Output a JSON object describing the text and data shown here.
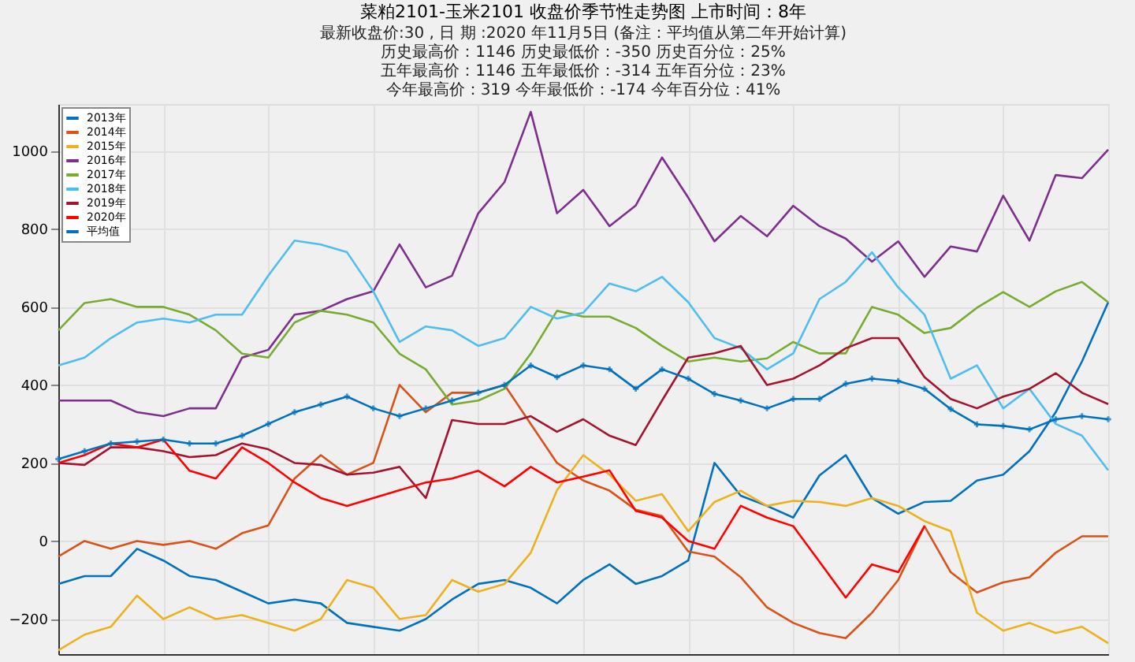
{
  "chart_data": {
    "type": "line",
    "title": "菜粕2101-玉米2101  收盘价季节性走势图      上市时间：8年",
    "subtitle": "最新收盘价:30 , 日 期 :2020 年11月5日  (备注：平均值从第二年开始计算)\n历史最高价：1146 历史最低价：-350 历史百分位：25%\n五年最高价：1146 五年最低价：-314 五年百分位：23%\n今年最高价：319 今年最低价：-174 今年百分位：41%",
    "categories": [
      null,
      null,
      null,
      null,
      null,
      null,
      null,
      null,
      null,
      null,
      null,
      null,
      null,
      null,
      null,
      null,
      null,
      null,
      null,
      null,
      null,
      null,
      null,
      null,
      null,
      null,
      null,
      null,
      null,
      null,
      null,
      null,
      null,
      null,
      null,
      null,
      null,
      null,
      null,
      null,
      null
    ],
    "series": [
      {
        "name": "2013年",
        "color": "#0072bd",
        "values": [
          -110,
          -90,
          -90,
          -20,
          -50,
          -90,
          -100,
          -130,
          -160,
          -150,
          -160,
          -210,
          -220,
          -230,
          -200,
          -150,
          -110,
          -100,
          -120,
          -160,
          -100,
          -60,
          -110,
          -90,
          -50,
          200,
          116,
          90,
          60,
          168,
          220,
          110,
          70,
          100,
          103,
          155,
          170,
          230,
          330,
          460,
          612
        ]
      },
      {
        "name": "2014年",
        "color": "#d95319",
        "values": [
          -40,
          0,
          -20,
          0,
          -10,
          0,
          -20,
          20,
          40,
          160,
          220,
          170,
          200,
          400,
          330,
          380,
          380,
          400,
          300,
          200,
          155,
          129,
          80,
          64,
          -27,
          -40,
          -93,
          -170,
          -210,
          -236,
          -249,
          -184,
          -100,
          38,
          -80,
          -132,
          -106,
          -93,
          -30,
          12,
          12
        ]
      },
      {
        "name": "2015年",
        "color": "#edb120",
        "values": [
          -280,
          -240,
          -220,
          -140,
          -200,
          -170,
          -200,
          -190,
          -210,
          -230,
          -200,
          -100,
          -120,
          -200,
          -190,
          -100,
          -130,
          -110,
          -30,
          130,
          220,
          170,
          103,
          120,
          25,
          100,
          129,
          90,
          103,
          100,
          90,
          110,
          90,
          51,
          25,
          -184,
          -230,
          -210,
          -236,
          -220,
          -262
        ]
      },
      {
        "name": "2016年",
        "color": "#7e2f8e",
        "values": [
          360,
          360,
          360,
          330,
          320,
          340,
          340,
          470,
          490,
          580,
          590,
          620,
          640,
          760,
          650,
          680,
          840,
          920,
          1100,
          840,
          900,
          807,
          860,
          983,
          880,
          768,
          833,
          781,
          859,
          807,
          775,
          716,
          768,
          677,
          755,
          742,
          885,
          770,
          938,
          930,
          1003
        ]
      },
      {
        "name": "2017年",
        "color": "#77ac30",
        "values": [
          540,
          610,
          620,
          600,
          600,
          580,
          540,
          480,
          470,
          560,
          590,
          580,
          560,
          480,
          440,
          350,
          360,
          390,
          480,
          590,
          575,
          575,
          546,
          500,
          460,
          470,
          460,
          468,
          510,
          481,
          481,
          600,
          580,
          533,
          546,
          598,
          638,
          600,
          640,
          664,
          612
        ]
      },
      {
        "name": "2018年",
        "color": "#4dbeee",
        "values": [
          450,
          470,
          520,
          560,
          570,
          560,
          580,
          580,
          680,
          770,
          760,
          740,
          640,
          510,
          550,
          540,
          500,
          520,
          600,
          570,
          585,
          660,
          640,
          677,
          612,
          520,
          494,
          440,
          481,
          620,
          664,
          740,
          650,
          580,
          416,
          450,
          340,
          390,
          300,
          270,
          181
        ]
      },
      {
        "name": "2019年",
        "color": "#a2142f",
        "values": [
          200,
          195,
          240,
          240,
          230,
          215,
          220,
          250,
          235,
          200,
          195,
          170,
          175,
          190,
          110,
          310,
          300,
          300,
          320,
          280,
          312,
          270,
          246,
          360,
          470,
          481,
          500,
          400,
          416,
          450,
          494,
          520,
          520,
          420,
          364,
          340,
          370,
          390,
          430,
          380,
          351
        ]
      },
      {
        "name": "2020年",
        "color": "#ff0000",
        "values": [
          200,
          220,
          250,
          240,
          260,
          180,
          160,
          240,
          200,
          150,
          110,
          90,
          110,
          130,
          150,
          160,
          180,
          140,
          190,
          150,
          165,
          181,
          77,
          60,
          0,
          -20,
          90,
          60,
          38,
          -53,
          -145,
          -60,
          -80,
          38,
          null,
          null,
          null,
          null,
          null,
          null,
          null
        ]
      },
      {
        "name": "平均值",
        "color": "#0072bd",
        "marker": "cross",
        "values": [
          210,
          230,
          250,
          255,
          260,
          250,
          250,
          270,
          300,
          330,
          350,
          370,
          340,
          320,
          340,
          360,
          380,
          400,
          450,
          420,
          450,
          440,
          390,
          440,
          416,
          377,
          360,
          340,
          364,
          364,
          403,
          416,
          410,
          390,
          338,
          299,
          295,
          286,
          312,
          320,
          312
        ]
      }
    ],
    "ylim": [
      -290,
      1120
    ],
    "yticks": [
      -200,
      0,
      200,
      400,
      600,
      800,
      1000
    ],
    "tick_labels": "y",
    "grid": true,
    "legend": "top left"
  }
}
